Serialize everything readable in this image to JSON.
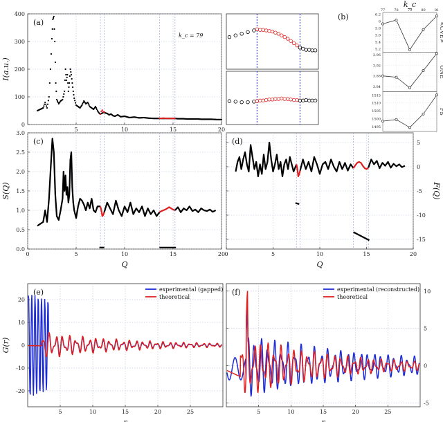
{
  "chart_data": [
    {
      "id": "a",
      "type": "scatter",
      "panel_label": "(a)",
      "annotation": "k_c = 79",
      "ylabel": "I(a.u.)",
      "xlabel": "",
      "xlim": [
        0,
        20
      ],
      "ylim": [
        0,
        400
      ],
      "xticks": [
        5,
        10,
        15,
        20
      ],
      "yticks": [
        0,
        100,
        200,
        300,
        400
      ],
      "grid": true,
      "vlines": [
        7.5,
        7.9,
        13.6,
        15.2
      ],
      "highlight_ranges": [
        [
          7.5,
          7.9
        ],
        [
          13.6,
          15.2
        ]
      ],
      "series": [
        {
          "color": "#000000",
          "x": [
            1,
            1.3,
            1.6,
            1.8,
            2.0,
            2.2,
            2.35,
            2.5,
            2.6,
            2.7,
            2.8,
            2.9,
            3.0,
            3.2,
            3.4,
            3.6,
            3.8,
            3.9,
            4.0,
            4.1,
            4.2,
            4.3,
            4.4,
            4.5,
            4.6,
            4.7,
            4.8,
            5.0,
            5.2,
            5.4,
            5.6,
            5.8,
            6.0,
            6.2,
            6.4,
            6.6,
            6.8,
            7.0,
            7.2,
            7.4,
            7.5,
            7.9,
            8.0,
            8.2,
            8.4,
            8.6,
            8.8,
            9.0,
            9.3,
            9.6,
            10,
            10.5,
            11,
            11.5,
            12,
            12.5,
            13,
            13.6,
            15.2,
            15.5,
            16,
            16.5,
            17,
            17.5,
            18,
            18.5,
            19,
            19.5,
            20
          ],
          "y": [
            50,
            55,
            60,
            80,
            60,
            100,
            200,
            310,
            380,
            390,
            300,
            150,
            90,
            75,
            85,
            90,
            120,
            200,
            160,
            180,
            120,
            150,
            200,
            180,
            150,
            120,
            95,
            70,
            65,
            60,
            70,
            85,
            75,
            80,
            65,
            60,
            55,
            65,
            50,
            40,
            38,
            45,
            42,
            40,
            35,
            38,
            32,
            30,
            35,
            28,
            30,
            25,
            27,
            24,
            25,
            23,
            22,
            22,
            22,
            21,
            21,
            20,
            20,
            20,
            19,
            19,
            19,
            18,
            18
          ]
        },
        {
          "color": "#e02020",
          "x": [
            7.5,
            7.6,
            7.7,
            7.8,
            7.9
          ],
          "y": [
            38,
            48,
            52,
            46,
            45
          ]
        },
        {
          "color": "#e02020",
          "x": [
            13.6,
            14.0,
            14.4,
            14.8,
            15.2
          ],
          "y": [
            22,
            23,
            22,
            22,
            22
          ]
        }
      ]
    },
    {
      "id": "a-inset-top",
      "type": "scatter",
      "grid": true,
      "xlim": [
        6.5,
        9.5
      ],
      "ylim": [
        0,
        1
      ],
      "vlines": [
        7.5,
        8.9
      ],
      "series": [
        {
          "color": "#000000",
          "x": [
            6.6,
            6.8,
            7.0,
            7.2,
            7.4,
            7.5
          ],
          "y": [
            0.58,
            0.61,
            0.64,
            0.67,
            0.7,
            0.72
          ]
        },
        {
          "color": "#e02020",
          "x": [
            7.5,
            7.6,
            7.7,
            7.8,
            7.9,
            8.0,
            8.1,
            8.2,
            8.3,
            8.4,
            8.5,
            8.6,
            8.7,
            8.8,
            8.9
          ],
          "y": [
            0.72,
            0.71,
            0.71,
            0.7,
            0.69,
            0.68,
            0.66,
            0.64,
            0.61,
            0.58,
            0.55,
            0.51,
            0.47,
            0.43,
            0.39
          ]
        },
        {
          "color": "#000000",
          "x": [
            8.9,
            9.0,
            9.1,
            9.2,
            9.3,
            9.4
          ],
          "y": [
            0.39,
            0.37,
            0.35,
            0.35,
            0.34,
            0.34
          ]
        }
      ]
    },
    {
      "id": "a-inset-bottom",
      "type": "scatter",
      "grid": true,
      "xlim": [
        6.5,
        9.5
      ],
      "ylim": [
        0,
        1
      ],
      "vlines": [
        7.5,
        8.9
      ],
      "series": [
        {
          "color": "#000000",
          "x": [
            6.6,
            6.8,
            7.0,
            7.2,
            7.4,
            7.5
          ],
          "y": [
            0.44,
            0.43,
            0.42,
            0.42,
            0.43,
            0.44
          ]
        },
        {
          "color": "#e02020",
          "x": [
            7.5,
            7.6,
            7.7,
            7.8,
            7.9,
            8.0,
            8.1,
            8.2,
            8.3,
            8.4,
            8.5,
            8.6,
            8.7,
            8.8,
            8.9
          ],
          "y": [
            0.44,
            0.45,
            0.45,
            0.46,
            0.47,
            0.47,
            0.48,
            0.48,
            0.49,
            0.48,
            0.48,
            0.47,
            0.46,
            0.46,
            0.45
          ]
        },
        {
          "color": "#000000",
          "x": [
            8.9,
            9.0,
            9.1,
            9.2,
            9.3,
            9.4
          ],
          "y": [
            0.45,
            0.45,
            0.46,
            0.45,
            0.45,
            0.45
          ]
        }
      ]
    },
    {
      "id": "b",
      "type": "line",
      "panel_label": "(b)",
      "x_title": "k_c",
      "x": [
        77,
        78,
        79,
        80,
        81
      ],
      "xticks": [
        77,
        78,
        79,
        80,
        81
      ],
      "subplots": [
        {
          "label": "<CVE>",
          "ylim": [
            5.1,
            6.25
          ],
          "yticks": [
            5.2,
            5.4,
            5.6,
            5.8,
            6.0,
            6.2
          ],
          "values": [
            5.92,
            6.03,
            5.17,
            5.75,
            6.15
          ]
        },
        {
          "label": "ONE",
          "ylim": [
            3.82,
            3.97
          ],
          "yticks": [
            3.84,
            3.88,
            3.92,
            3.96
          ],
          "values": [
            3.88,
            3.875,
            3.835,
            3.9,
            3.965
          ]
        },
        {
          "label": "FS",
          "ylim": [
            1492,
            1517
          ],
          "yticks": [
            1495,
            1500,
            1505,
            1510,
            1515
          ],
          "values": [
            1498.5,
            1499.5,
            1494.5,
            1503,
            1515
          ]
        }
      ]
    },
    {
      "id": "c",
      "type": "line",
      "panel_label": "(c)",
      "xlabel": "Q",
      "ylabel": "S(Q)",
      "xlim": [
        0,
        20
      ],
      "ylim": [
        0,
        3
      ],
      "xticks": [
        0,
        5,
        10,
        15,
        20
      ],
      "yticks": [
        0,
        0.5,
        1.0,
        1.5,
        2.0,
        2.5,
        3.0
      ],
      "grid": true,
      "vlines": [
        7.5,
        7.9,
        13.6,
        15.2
      ],
      "series": [
        {
          "color": "#000000",
          "x": [
            1,
            1.3,
            1.6,
            1.8,
            2.0,
            2.2,
            2.4,
            2.55,
            2.7,
            2.85,
            3.0,
            3.2,
            3.4,
            3.6,
            3.7,
            3.8,
            3.9,
            4.0,
            4.1,
            4.2,
            4.3,
            4.4,
            4.5,
            4.6,
            4.7,
            4.8,
            4.9,
            5.0,
            5.2,
            5.4,
            5.6,
            5.8,
            6.0,
            6.2,
            6.4,
            6.6,
            6.8,
            7.0,
            7.2,
            7.5
          ],
          "y": [
            0.6,
            0.65,
            0.7,
            1.0,
            0.7,
            1.3,
            2.2,
            2.85,
            2.5,
            1.4,
            0.85,
            0.75,
            1.0,
            1.3,
            2.0,
            1.5,
            1.9,
            1.4,
            1.6,
            1.2,
            1.4,
            2.3,
            2.5,
            1.6,
            1.2,
            1.0,
            0.9,
            0.8,
            1.1,
            1.3,
            1.25,
            1.15,
            1.0,
            1.2,
            1.05,
            1.3,
            1.0,
            0.95,
            1.1,
            1.1
          ]
        },
        {
          "color": "#e02020",
          "x": [
            7.5,
            7.6,
            7.7,
            7.8,
            7.9
          ],
          "y": [
            1.1,
            1.0,
            0.85,
            0.88,
            0.95
          ]
        },
        {
          "color": "#000000",
          "x": [
            7.9,
            8.2,
            8.5,
            8.8,
            9.1,
            9.4,
            9.7,
            10.0,
            10.3,
            10.6,
            10.9,
            11.2,
            11.5,
            11.8,
            12.1,
            12.4,
            12.7,
            13.0,
            13.3,
            13.6
          ],
          "y": [
            0.95,
            1.2,
            1.05,
            0.9,
            1.25,
            1.0,
            0.85,
            1.1,
            0.95,
            1.2,
            0.9,
            1.05,
            0.95,
            1.1,
            0.85,
            1.05,
            0.9,
            1.0,
            0.85,
            0.95
          ]
        },
        {
          "color": "#e02020",
          "x": [
            13.6,
            13.8,
            14.0,
            14.2,
            14.4,
            14.6,
            14.8,
            15.0,
            15.2
          ],
          "y": [
            0.95,
            0.98,
            1.0,
            1.02,
            1.05,
            1.08,
            1.05,
            1.02,
            1.0
          ]
        },
        {
          "color": "#000000",
          "x": [
            15.2,
            15.5,
            15.8,
            16.1,
            16.4,
            16.7,
            17.0,
            17.3,
            17.6,
            17.9,
            18.2,
            18.5,
            18.8,
            19.1,
            19.4
          ],
          "y": [
            1.0,
            1.08,
            0.95,
            1.05,
            1.0,
            1.1,
            0.98,
            1.02,
            0.95,
            1.05,
            1.0,
            0.98,
            1.02,
            0.96,
            1.0
          ]
        },
        {
          "color": "#000000",
          "x": [
            7.4,
            7.9
          ],
          "y": [
            0.04,
            0.04
          ]
        },
        {
          "color": "#000000",
          "x": [
            13.6,
            15.3
          ],
          "y": [
            0.04,
            0.04
          ]
        }
      ]
    },
    {
      "id": "d",
      "type": "line",
      "panel_label": "(d)",
      "xlabel": "Q",
      "ylabel": "F(Q)",
      "xlim": [
        0,
        20
      ],
      "ylim": [
        -17,
        7
      ],
      "xticks": [
        0,
        5,
        10,
        15,
        20
      ],
      "yticks": [
        -15,
        -10,
        -5,
        0,
        5
      ],
      "grid": true,
      "vlines": [
        7.5,
        7.9,
        13.6,
        15.2
      ],
      "series": [
        {
          "color": "#000000",
          "x": [
            1,
            1.2,
            1.4,
            1.6,
            1.8,
            2.0,
            2.2,
            2.4,
            2.6,
            2.8,
            3.0,
            3.2,
            3.4,
            3.6,
            3.8,
            4.0,
            4.2,
            4.4,
            4.6,
            4.8,
            5.0,
            5.2,
            5.4,
            5.6,
            5.8,
            6.0,
            6.2,
            6.4,
            6.6,
            6.8,
            7.0,
            7.2,
            7.5
          ],
          "y": [
            -1,
            1,
            2,
            -0.5,
            1.5,
            3,
            0.5,
            -1,
            4.5,
            2,
            -0.5,
            1,
            -2,
            0.5,
            -1.5,
            2.5,
            -0.5,
            1,
            5,
            1.5,
            -1,
            0.5,
            2.5,
            -0.5,
            1,
            -2,
            0.5,
            1.5,
            -0.5,
            2,
            0.5,
            -1,
            0.5
          ]
        },
        {
          "color": "#e02020",
          "x": [
            7.5,
            7.6,
            7.7,
            7.8,
            7.9
          ],
          "y": [
            0.5,
            -0.5,
            -2,
            -1.5,
            -0.8
          ]
        },
        {
          "color": "#000000",
          "x": [
            7.9,
            8.2,
            8.5,
            8.8,
            9.1,
            9.4,
            9.7,
            10.0,
            10.3,
            10.6,
            10.9,
            11.2,
            11.5,
            11.8,
            12.1,
            12.4,
            12.7,
            13.0,
            13.3,
            13.6
          ],
          "y": [
            -0.8,
            1.5,
            -0.5,
            1,
            -1,
            2,
            0.5,
            -1.5,
            0.5,
            1,
            -0.5,
            1.5,
            0,
            -1,
            1,
            -0.5,
            0.8,
            -0.8,
            0.5,
            -0.3
          ]
        },
        {
          "color": "#e02020",
          "x": [
            13.6,
            13.8,
            14.0,
            14.2,
            14.4,
            14.6,
            14.8,
            15.0,
            15.2
          ],
          "y": [
            -0.3,
            0.3,
            0.8,
            1.0,
            0.8,
            0.2,
            -0.3,
            -0.5,
            -0.2
          ]
        },
        {
          "color": "#000000",
          "x": [
            15.2,
            15.5,
            15.8,
            16.1,
            16.4,
            16.7,
            17.0,
            17.3,
            17.6,
            17.9,
            18.2,
            18.5,
            18.8,
            19.1
          ],
          "y": [
            -0.2,
            1.5,
            0.5,
            1.2,
            -0.3,
            0.8,
            0.2,
            1,
            -0.2,
            0.6,
            0.1,
            0.5,
            -0.1,
            0.2
          ]
        },
        {
          "color": "#000000",
          "x": [
            7.4,
            7.8
          ],
          "y": [
            -7.5,
            -7.7
          ]
        },
        {
          "color": "#000000",
          "x": [
            13.6,
            15.3
          ],
          "y": [
            -13.5,
            -15.2
          ]
        }
      ]
    },
    {
      "id": "e",
      "type": "line",
      "panel_label": "(e)",
      "xlabel": "r",
      "ylabel": "G(r)",
      "xlim": [
        0,
        30
      ],
      "ylim": [
        -27,
        27
      ],
      "xticks": [
        5,
        10,
        15,
        20,
        25
      ],
      "yticks": [
        -20,
        -10,
        0,
        10,
        20
      ],
      "grid": true,
      "legend_position": "top-right",
      "series": [
        {
          "name": "experimental (gapped)",
          "color": "#1c2bd6",
          "kind": "gapped"
        },
        {
          "name": "theoretical",
          "color": "#e02020",
          "kind": "theory"
        }
      ]
    },
    {
      "id": "f",
      "type": "line",
      "panel_label": "(f)",
      "xlabel": "r",
      "ylabel": "",
      "xlim": [
        0,
        30
      ],
      "ylim": [
        -5.5,
        11
      ],
      "xticks": [
        5,
        10,
        15,
        20,
        25
      ],
      "yticks": [
        -5,
        0,
        5,
        10
      ],
      "grid": true,
      "legend_position": "top-left",
      "series": [
        {
          "name": "experimental (reconstructed)",
          "color": "#1c2bd6",
          "kind": "recon"
        },
        {
          "name": "theoretical",
          "color": "#e02020",
          "kind": "theory"
        }
      ]
    }
  ]
}
